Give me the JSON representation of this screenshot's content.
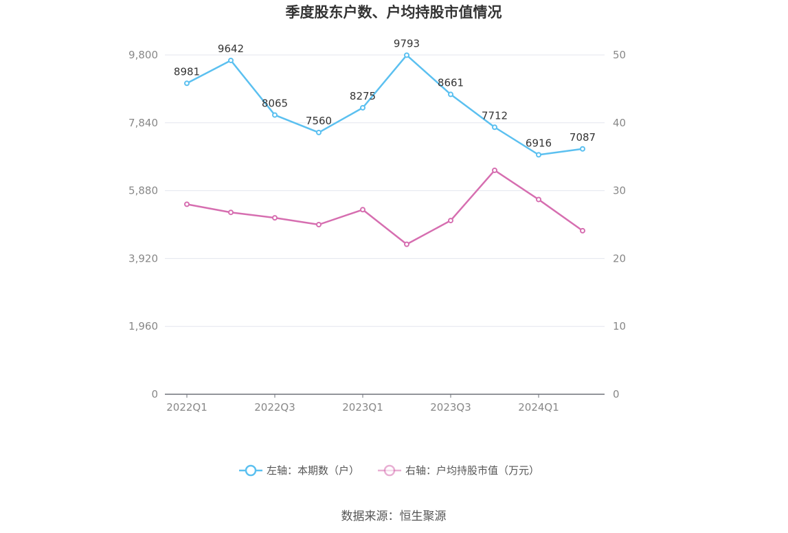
{
  "chart_data": {
    "type": "line",
    "title": "季度股东户数、户均持股市值情况",
    "categories": [
      "2022Q1",
      "2022Q2",
      "2022Q3",
      "2022Q4",
      "2023Q1",
      "2023Q2",
      "2023Q3",
      "2023Q4",
      "2024Q1",
      "2024Q2"
    ],
    "x_tick_labels": [
      "2022Q1",
      "2022Q3",
      "2023Q1",
      "2023Q3",
      "2024Q1"
    ],
    "left_axis": {
      "min": 0,
      "max": 9800,
      "ticks": [
        "0",
        "1,960",
        "3,920",
        "5,880",
        "7,840",
        "9,800"
      ]
    },
    "right_axis": {
      "min": 0,
      "max": 50,
      "ticks": [
        "0",
        "10",
        "20",
        "30",
        "40",
        "50"
      ]
    },
    "series": [
      {
        "name": "左轴：本期数（户）",
        "axis": "left",
        "color": "#5bc0f0",
        "values": [
          8981,
          9642,
          8065,
          7560,
          8275,
          9793,
          8661,
          7712,
          6916,
          7087
        ],
        "labels": [
          "8981",
          "9642",
          "8065",
          "7560",
          "8275",
          "9793",
          "8661",
          "7712",
          "6916",
          "7087"
        ]
      },
      {
        "name": "右轴：户均持股市值（万元）",
        "axis": "right",
        "color": "#d66eb0",
        "values": [
          28.0,
          26.8,
          26.0,
          25.0,
          27.2,
          22.1,
          25.6,
          33.0,
          28.7,
          24.1
        ]
      }
    ],
    "grid": true,
    "legend_position": "bottom"
  },
  "source": "数据来源：恒生聚源"
}
